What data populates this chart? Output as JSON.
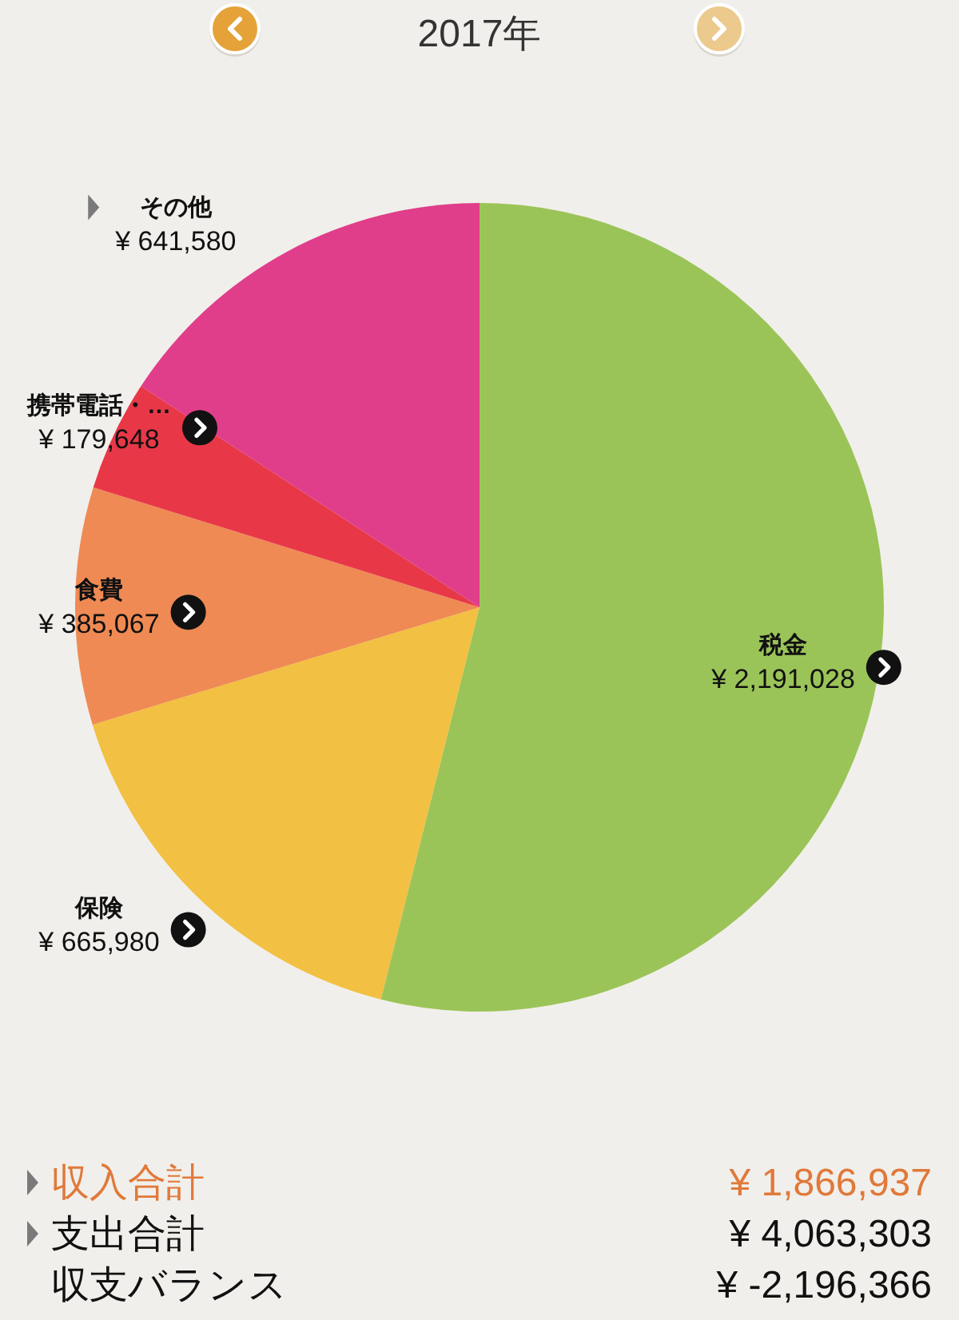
{
  "chart_data": {
    "type": "pie",
    "title": "2017年",
    "categories": [
      "税金",
      "保険",
      "食費",
      "携帯電話・…",
      "その他"
    ],
    "values": [
      2191028,
      665980,
      385067,
      179648,
      641580
    ],
    "colors": [
      "#9bc458",
      "#f2c042",
      "#ef8a54",
      "#e83848",
      "#e03e8a"
    ],
    "value_labels": [
      "¥ 2,191,028",
      "¥ 665,980",
      "¥ 385,067",
      "¥ 179,648",
      "¥ 641,580"
    ],
    "annotations": [
      "収入合計",
      "¥ 1,866,937",
      "支出合計",
      "¥ 4,063,303",
      "収支バランス",
      "¥ -2,196,366"
    ]
  }
}
